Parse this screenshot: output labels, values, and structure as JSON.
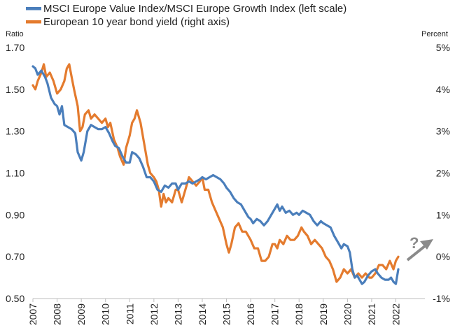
{
  "chart_data": {
    "type": "line",
    "legend_position": "top-left",
    "grid": false,
    "left_axis": {
      "unit_label": "Ratio",
      "range": [
        0.5,
        1.7
      ],
      "ticks": [
        "0.50",
        "0.70",
        "0.90",
        "1.10",
        "1.30",
        "1.50",
        "1.70"
      ]
    },
    "right_axis": {
      "unit_label": "Percent",
      "range": [
        -1,
        5
      ],
      "ticks": [
        "-1%",
        "0%",
        "1%",
        "2%",
        "3%",
        "4%",
        "5%"
      ]
    },
    "x_axis": {
      "range": [
        2007,
        2023.2
      ],
      "ticks": [
        "2007",
        "2008",
        "2009",
        "2010",
        "2011",
        "2012",
        "2013",
        "2014",
        "2015",
        "2016",
        "2017",
        "2018",
        "2019",
        "2020",
        "2021",
        "2022"
      ]
    },
    "annotation": {
      "text": "?",
      "arrow_color": "#8a8a8a"
    },
    "series": [
      {
        "name": "MSCI Europe Value Index/MSCI Europe Growth Index (left scale)",
        "axis": "left",
        "color": "#4a7ebb",
        "points": [
          [
            2007.0,
            1.61
          ],
          [
            2007.1,
            1.6
          ],
          [
            2007.2,
            1.57
          ],
          [
            2007.35,
            1.59
          ],
          [
            2007.5,
            1.56
          ],
          [
            2007.6,
            1.53
          ],
          [
            2007.75,
            1.46
          ],
          [
            2007.9,
            1.43
          ],
          [
            2008.0,
            1.42
          ],
          [
            2008.1,
            1.38
          ],
          [
            2008.2,
            1.42
          ],
          [
            2008.3,
            1.33
          ],
          [
            2008.45,
            1.32
          ],
          [
            2008.6,
            1.31
          ],
          [
            2008.75,
            1.29
          ],
          [
            2008.85,
            1.2
          ],
          [
            2009.0,
            1.16
          ],
          [
            2009.1,
            1.2
          ],
          [
            2009.25,
            1.3
          ],
          [
            2009.4,
            1.33
          ],
          [
            2009.55,
            1.32
          ],
          [
            2009.7,
            1.31
          ],
          [
            2009.85,
            1.31
          ],
          [
            2010.0,
            1.32
          ],
          [
            2010.15,
            1.29
          ],
          [
            2010.3,
            1.25
          ],
          [
            2010.4,
            1.23
          ],
          [
            2010.55,
            1.22
          ],
          [
            2010.7,
            1.18
          ],
          [
            2010.85,
            1.15
          ],
          [
            2011.0,
            1.15
          ],
          [
            2011.1,
            1.2
          ],
          [
            2011.25,
            1.19
          ],
          [
            2011.4,
            1.17
          ],
          [
            2011.55,
            1.13
          ],
          [
            2011.7,
            1.08
          ],
          [
            2011.85,
            1.08
          ],
          [
            2012.0,
            1.06
          ],
          [
            2012.15,
            1.02
          ],
          [
            2012.3,
            1.01
          ],
          [
            2012.45,
            1.04
          ],
          [
            2012.6,
            1.03
          ],
          [
            2012.75,
            1.05
          ],
          [
            2012.9,
            1.05
          ],
          [
            2013.0,
            1.02
          ],
          [
            2013.15,
            1.05
          ],
          [
            2013.3,
            1.05
          ],
          [
            2013.45,
            1.06
          ],
          [
            2013.6,
            1.05
          ],
          [
            2013.75,
            1.06
          ],
          [
            2013.9,
            1.07
          ],
          [
            2014.0,
            1.08
          ],
          [
            2014.15,
            1.07
          ],
          [
            2014.3,
            1.08
          ],
          [
            2014.45,
            1.09
          ],
          [
            2014.6,
            1.08
          ],
          [
            2014.75,
            1.07
          ],
          [
            2014.9,
            1.05
          ],
          [
            2015.0,
            1.03
          ],
          [
            2015.15,
            1.01
          ],
          [
            2015.3,
            0.98
          ],
          [
            2015.45,
            0.96
          ],
          [
            2015.6,
            0.95
          ],
          [
            2015.75,
            0.92
          ],
          [
            2015.9,
            0.89
          ],
          [
            2016.0,
            0.88
          ],
          [
            2016.1,
            0.86
          ],
          [
            2016.25,
            0.88
          ],
          [
            2016.4,
            0.87
          ],
          [
            2016.55,
            0.85
          ],
          [
            2016.7,
            0.87
          ],
          [
            2016.85,
            0.9
          ],
          [
            2017.0,
            0.93
          ],
          [
            2017.1,
            0.95
          ],
          [
            2017.2,
            0.92
          ],
          [
            2017.3,
            0.94
          ],
          [
            2017.45,
            0.91
          ],
          [
            2017.6,
            0.92
          ],
          [
            2017.75,
            0.9
          ],
          [
            2017.9,
            0.91
          ],
          [
            2018.0,
            0.9
          ],
          [
            2018.15,
            0.92
          ],
          [
            2018.3,
            0.91
          ],
          [
            2018.45,
            0.9
          ],
          [
            2018.6,
            0.87
          ],
          [
            2018.75,
            0.85
          ],
          [
            2018.9,
            0.87
          ],
          [
            2019.0,
            0.86
          ],
          [
            2019.15,
            0.85
          ],
          [
            2019.3,
            0.84
          ],
          [
            2019.45,
            0.8
          ],
          [
            2019.6,
            0.77
          ],
          [
            2019.75,
            0.74
          ],
          [
            2019.85,
            0.76
          ],
          [
            2020.0,
            0.75
          ],
          [
            2020.1,
            0.72
          ],
          [
            2020.2,
            0.64
          ],
          [
            2020.3,
            0.6
          ],
          [
            2020.4,
            0.61
          ],
          [
            2020.5,
            0.59
          ],
          [
            2020.6,
            0.57
          ],
          [
            2020.7,
            0.58
          ],
          [
            2020.85,
            0.61
          ],
          [
            2021.0,
            0.63
          ],
          [
            2021.15,
            0.64
          ],
          [
            2021.25,
            0.62
          ],
          [
            2021.4,
            0.6
          ],
          [
            2021.55,
            0.59
          ],
          [
            2021.7,
            0.59
          ],
          [
            2021.8,
            0.6
          ],
          [
            2021.9,
            0.58
          ],
          [
            2022.0,
            0.57
          ],
          [
            2022.1,
            0.64
          ]
        ]
      },
      {
        "name": "European 10 year bond yield (right axis)",
        "axis": "right",
        "color": "#e47b2e",
        "points": [
          [
            2007.0,
            4.1
          ],
          [
            2007.1,
            4.0
          ],
          [
            2007.2,
            4.2
          ],
          [
            2007.35,
            4.4
          ],
          [
            2007.45,
            4.6
          ],
          [
            2007.55,
            4.3
          ],
          [
            2007.7,
            4.4
          ],
          [
            2007.85,
            4.2
          ],
          [
            2008.0,
            3.9
          ],
          [
            2008.15,
            4.0
          ],
          [
            2008.3,
            4.2
          ],
          [
            2008.4,
            4.5
          ],
          [
            2008.5,
            4.6
          ],
          [
            2008.6,
            4.3
          ],
          [
            2008.7,
            4.0
          ],
          [
            2008.85,
            3.6
          ],
          [
            2008.95,
            3.0
          ],
          [
            2009.05,
            3.1
          ],
          [
            2009.15,
            3.4
          ],
          [
            2009.3,
            3.5
          ],
          [
            2009.4,
            3.3
          ],
          [
            2009.55,
            3.4
          ],
          [
            2009.7,
            3.3
          ],
          [
            2009.85,
            3.2
          ],
          [
            2010.0,
            3.3
          ],
          [
            2010.1,
            3.1
          ],
          [
            2010.2,
            3.2
          ],
          [
            2010.35,
            2.8
          ],
          [
            2010.5,
            2.6
          ],
          [
            2010.6,
            2.4
          ],
          [
            2010.75,
            2.2
          ],
          [
            2010.85,
            2.6
          ],
          [
            2011.0,
            2.9
          ],
          [
            2011.1,
            3.2
          ],
          [
            2011.2,
            3.3
          ],
          [
            2011.3,
            3.5
          ],
          [
            2011.45,
            3.2
          ],
          [
            2011.6,
            2.7
          ],
          [
            2011.75,
            2.2
          ],
          [
            2011.85,
            2.0
          ],
          [
            2012.0,
            1.9
          ],
          [
            2012.1,
            1.8
          ],
          [
            2012.2,
            1.6
          ],
          [
            2012.3,
            1.2
          ],
          [
            2012.4,
            1.5
          ],
          [
            2012.5,
            1.3
          ],
          [
            2012.6,
            1.4
          ],
          [
            2012.75,
            1.3
          ],
          [
            2012.9,
            1.6
          ],
          [
            2013.0,
            1.6
          ],
          [
            2013.15,
            1.3
          ],
          [
            2013.3,
            1.6
          ],
          [
            2013.45,
            1.9
          ],
          [
            2013.6,
            1.8
          ],
          [
            2013.75,
            1.7
          ],
          [
            2013.9,
            1.8
          ],
          [
            2014.0,
            1.9
          ],
          [
            2014.1,
            1.6
          ],
          [
            2014.25,
            1.6
          ],
          [
            2014.4,
            1.3
          ],
          [
            2014.55,
            1.1
          ],
          [
            2014.7,
            0.9
          ],
          [
            2014.85,
            0.7
          ],
          [
            2015.0,
            0.3
          ],
          [
            2015.1,
            0.1
          ],
          [
            2015.2,
            0.3
          ],
          [
            2015.35,
            0.7
          ],
          [
            2015.5,
            0.8
          ],
          [
            2015.65,
            0.6
          ],
          [
            2015.8,
            0.6
          ],
          [
            2016.0,
            0.4
          ],
          [
            2016.15,
            0.2
          ],
          [
            2016.3,
            0.2
          ],
          [
            2016.45,
            -0.1
          ],
          [
            2016.6,
            -0.1
          ],
          [
            2016.75,
            0.0
          ],
          [
            2016.9,
            0.3
          ],
          [
            2017.0,
            0.3
          ],
          [
            2017.1,
            0.2
          ],
          [
            2017.2,
            0.4
          ],
          [
            2017.35,
            0.3
          ],
          [
            2017.5,
            0.5
          ],
          [
            2017.65,
            0.4
          ],
          [
            2017.8,
            0.4
          ],
          [
            2017.95,
            0.5
          ],
          [
            2018.1,
            0.7
          ],
          [
            2018.2,
            0.6
          ],
          [
            2018.35,
            0.5
          ],
          [
            2018.5,
            0.3
          ],
          [
            2018.65,
            0.4
          ],
          [
            2018.8,
            0.3
          ],
          [
            2018.95,
            0.2
          ],
          [
            2019.1,
            0.0
          ],
          [
            2019.25,
            -0.1
          ],
          [
            2019.4,
            -0.3
          ],
          [
            2019.55,
            -0.6
          ],
          [
            2019.7,
            -0.5
          ],
          [
            2019.85,
            -0.3
          ],
          [
            2020.0,
            -0.4
          ],
          [
            2020.15,
            -0.3
          ],
          [
            2020.3,
            -0.5
          ],
          [
            2020.45,
            -0.4
          ],
          [
            2020.6,
            -0.5
          ],
          [
            2020.75,
            -0.4
          ],
          [
            2020.9,
            -0.5
          ],
          [
            2021.0,
            -0.5
          ],
          [
            2021.15,
            -0.4
          ],
          [
            2021.3,
            -0.2
          ],
          [
            2021.45,
            -0.2
          ],
          [
            2021.6,
            -0.3
          ],
          [
            2021.75,
            -0.1
          ],
          [
            2021.9,
            -0.3
          ],
          [
            2022.0,
            -0.1
          ],
          [
            2022.1,
            0.0
          ]
        ]
      }
    ]
  }
}
